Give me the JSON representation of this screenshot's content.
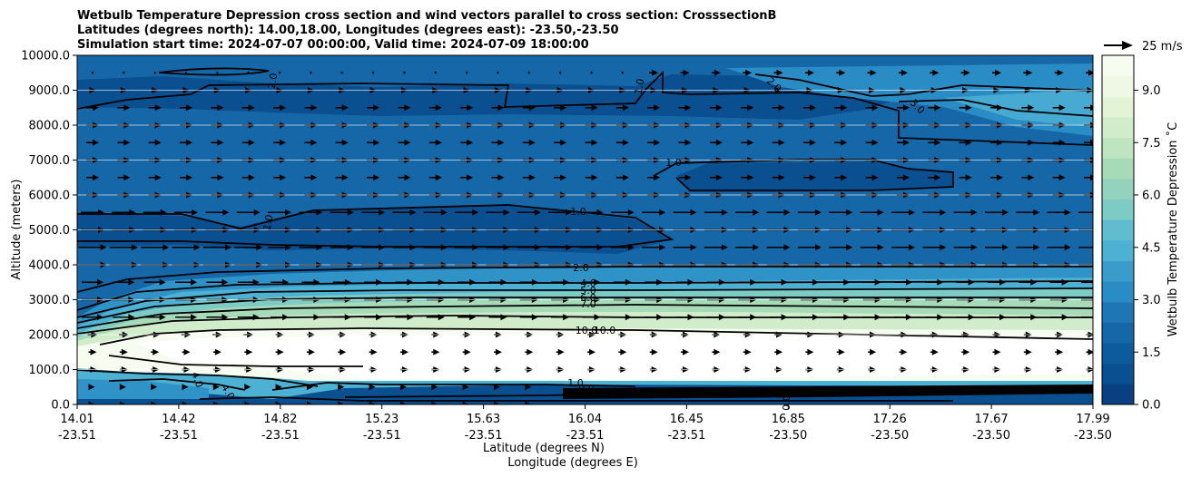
{
  "chart_data": {
    "type": "contour",
    "title_lines": [
      "Wetbulb Temperature Depression cross section and wind vectors parallel to cross section: CrosssectionB",
      "Latitudes (degrees north): 14.00,18.00, Longitudes (degrees east): -23.50,-23.50",
      "Simulation start time: 2024-07-07 00:00:00, Valid time: 2024-07-09 18:00:00"
    ],
    "ylabel": "Altitude (meters)",
    "xlabel_lines": [
      "Latitude (degrees N)",
      "Longitude (degrees E)"
    ],
    "ylim": [
      0,
      10000
    ],
    "y_ticks": [
      "0.0",
      "1000.0",
      "2000.0",
      "3000.0",
      "4000.0",
      "5000.0",
      "6000.0",
      "7000.0",
      "8000.0",
      "9000.0",
      "10000.0"
    ],
    "x_ticks": [
      {
        "lat": "14.01",
        "lon": "-23.51"
      },
      {
        "lat": "14.42",
        "lon": "-23.51"
      },
      {
        "lat": "14.82",
        "lon": "-23.51"
      },
      {
        "lat": "15.23",
        "lon": "-23.51"
      },
      {
        "lat": "15.63",
        "lon": "-23.51"
      },
      {
        "lat": "16.04",
        "lon": "-23.51"
      },
      {
        "lat": "16.45",
        "lon": "-23.51"
      },
      {
        "lat": "16.85",
        "lon": "-23.50"
      },
      {
        "lat": "17.26",
        "lon": "-23.50"
      },
      {
        "lat": "17.67",
        "lon": "-23.50"
      },
      {
        "lat": "17.99",
        "lon": "-23.50"
      }
    ],
    "colorbar": {
      "label": "Wetbulb Temperature Depression ˚C",
      "ticks": [
        "0.0",
        "1.5",
        "3.0",
        "4.5",
        "6.0",
        "7.5",
        "9.0"
      ],
      "range": [
        0,
        10
      ]
    },
    "quiver_key": "25 m/s",
    "grid": "horizontal",
    "contour_labels": [
      "2.0",
      "1.0",
      "2.0",
      "3.0",
      "1.0",
      "1.0",
      "1.0",
      "2.0",
      "4.0",
      "5.0",
      "6.0",
      "7.0",
      "10.0",
      "10.0",
      "4.0",
      "4.0",
      "1.0",
      "0.0",
      "0.0"
    ]
  }
}
